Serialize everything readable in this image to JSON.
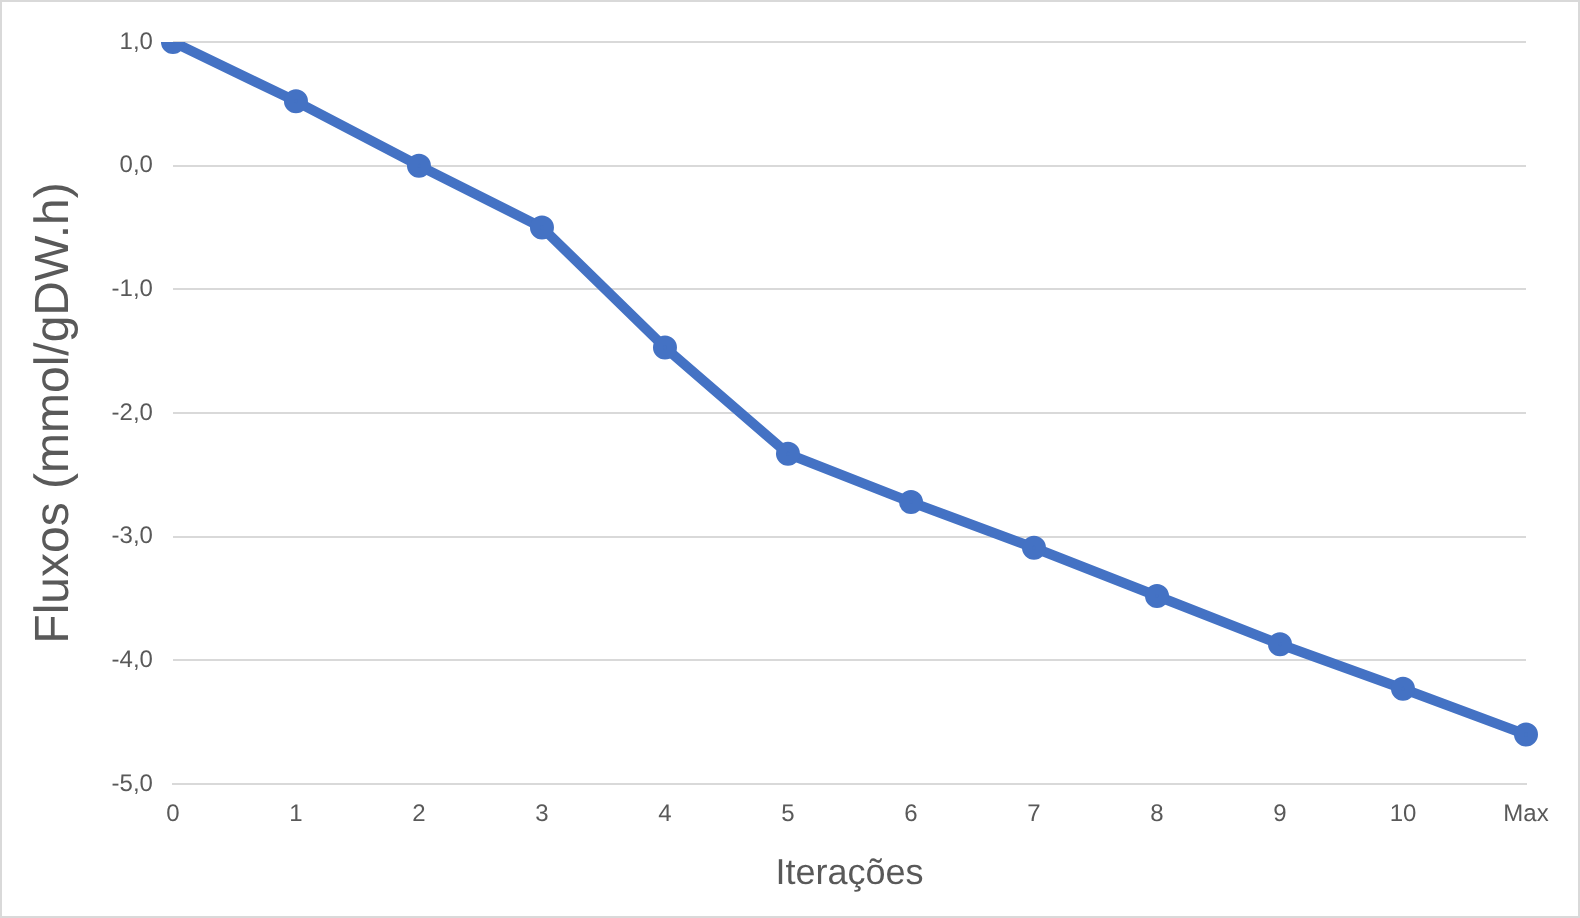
{
  "chart_data": {
    "type": "line",
    "xlabel": "Iterações",
    "ylabel": "Fluxos (mmol/gDW.h)",
    "categories": [
      "0",
      "1",
      "2",
      "3",
      "4",
      "5",
      "6",
      "7",
      "8",
      "9",
      "10",
      "Max"
    ],
    "series": [
      {
        "color": "#4472c4",
        "values": [
          1.0,
          0.52,
          0.0,
          -0.5,
          -1.47,
          -2.33,
          -2.72,
          -3.09,
          -3.48,
          -3.87,
          -4.23,
          -4.6
        ]
      }
    ],
    "ylim": [
      -5,
      1
    ],
    "yticks": [
      {
        "value": -5,
        "label": "-5,0"
      },
      {
        "value": -4,
        "label": "-4,0"
      },
      {
        "value": -3,
        "label": "-3,0"
      },
      {
        "value": -2,
        "label": "-2,0"
      },
      {
        "value": -1,
        "label": "-1,0"
      },
      {
        "value": 0,
        "label": "0,0"
      },
      {
        "value": 1,
        "label": "1,0"
      }
    ],
    "grid": "y",
    "marker": "circle",
    "line_style": "solid",
    "legend": false
  }
}
